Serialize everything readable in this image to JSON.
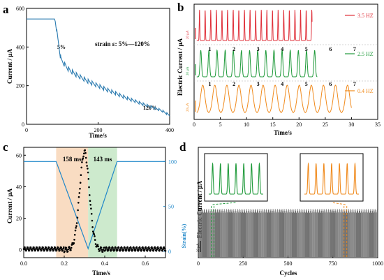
{
  "chart_data": [
    {
      "panel": "a",
      "type": "line",
      "xlabel": "Time/s",
      "ylabel": "Current / μA",
      "xlim": [
        0,
        400
      ],
      "ylim": [
        0,
        600
      ],
      "xticks": [
        0,
        200,
        400
      ],
      "yticks": [
        0,
        200,
        400,
        600
      ],
      "annotations": {
        "strain_label": "strain ε: 5%—120%",
        "start_label": "5%",
        "end_label": "120%"
      },
      "color": "#2b7bb0",
      "baseline": {
        "x": [
          0,
          80
        ],
        "y": [
          545,
          545
        ]
      },
      "series": [
        {
          "x": [
            0,
            78,
            80,
            84,
            88,
            92,
            96,
            104,
            112,
            120,
            130,
            140,
            150,
            160,
            170,
            180,
            190,
            200,
            210,
            220,
            230,
            240,
            250,
            260,
            270,
            280,
            290,
            300,
            310,
            320,
            330,
            340,
            350,
            360,
            370,
            380,
            390,
            400
          ],
          "y": [
            545,
            545,
            535,
            480,
            430,
            380,
            330,
            310,
            290,
            275,
            262,
            250,
            240,
            230,
            220,
            212,
            204,
            196,
            188,
            180,
            172,
            165,
            158,
            150,
            142,
            135,
            128,
            122,
            115,
            108,
            102,
            96,
            90,
            84,
            78,
            70,
            60,
            48
          ]
        }
      ]
    },
    {
      "panel": "b",
      "type": "line",
      "xlabel": "Time/s",
      "ylabel": "Electric Current / μA",
      "xlim": [
        0,
        35
      ],
      "xticks": [
        0,
        5,
        10,
        15,
        20,
        25,
        30,
        35
      ],
      "scale_bar": "20 μA",
      "series": [
        {
          "name": "3.5 HZ",
          "color": "#e0303a",
          "period": 1.07,
          "x_start": 0.5,
          "x_end": 22.5,
          "peaks": 20
        },
        {
          "name": "2.5 HZ",
          "color": "#1f9a3a",
          "period": 1.55,
          "x_start": 0.5,
          "x_end": 23.5,
          "peaks": 15,
          "markers": [
            "1",
            "2",
            "3",
            "4",
            "5",
            "6",
            "7"
          ]
        },
        {
          "name": "0.4 HZ",
          "color": "#f08a1c",
          "period": 2.3,
          "x_start": 0.5,
          "x_end": 30,
          "peaks": 13,
          "markers": [
            "1",
            "2",
            "3",
            "4",
            "5",
            "6",
            "7"
          ]
        }
      ]
    },
    {
      "panel": "c",
      "type": "scatter",
      "xlabel": "Time/s",
      "ylabel": "Current / μA",
      "y2label": "Strain(%)",
      "xlim": [
        0.0,
        0.7
      ],
      "ylim": [
        -5,
        65
      ],
      "y2lim": [
        0,
        100
      ],
      "xticks": [
        0.0,
        0.2,
        0.4,
        0.6
      ],
      "yticks": [
        0,
        20,
        40,
        60
      ],
      "y2ticks": [
        0,
        50,
        100
      ],
      "bands": [
        {
          "label": "158 ms",
          "x": [
            0.16,
            0.318
          ],
          "color": "#f9dcc2"
        },
        {
          "label": "143 ms",
          "x": [
            0.318,
            0.461
          ],
          "color": "#cdeacd"
        }
      ],
      "strain": {
        "x": [
          0.0,
          0.16,
          0.318,
          0.461,
          0.7
        ],
        "y": [
          100,
          100,
          3,
          100,
          100
        ],
        "color": "#1f87c9"
      },
      "current_peak": {
        "x": 0.3,
        "y": 62
      }
    },
    {
      "panel": "d",
      "type": "line",
      "xlabel": "Cycles",
      "ylabel": "Electric Current / μA",
      "xlim": [
        0,
        1000
      ],
      "xticks": [
        0,
        250,
        500,
        750,
        1000
      ],
      "scale_bar": "20 μA",
      "cycles": 1000,
      "insets": [
        {
          "color": "#1f9a3a",
          "peaks": 7,
          "at_cycle": 80
        },
        {
          "color": "#f08a1c",
          "peaks": 7,
          "at_cycle": 820
        }
      ]
    }
  ],
  "labels": {
    "a": "a",
    "b": "b",
    "c": "c",
    "d": "d"
  }
}
